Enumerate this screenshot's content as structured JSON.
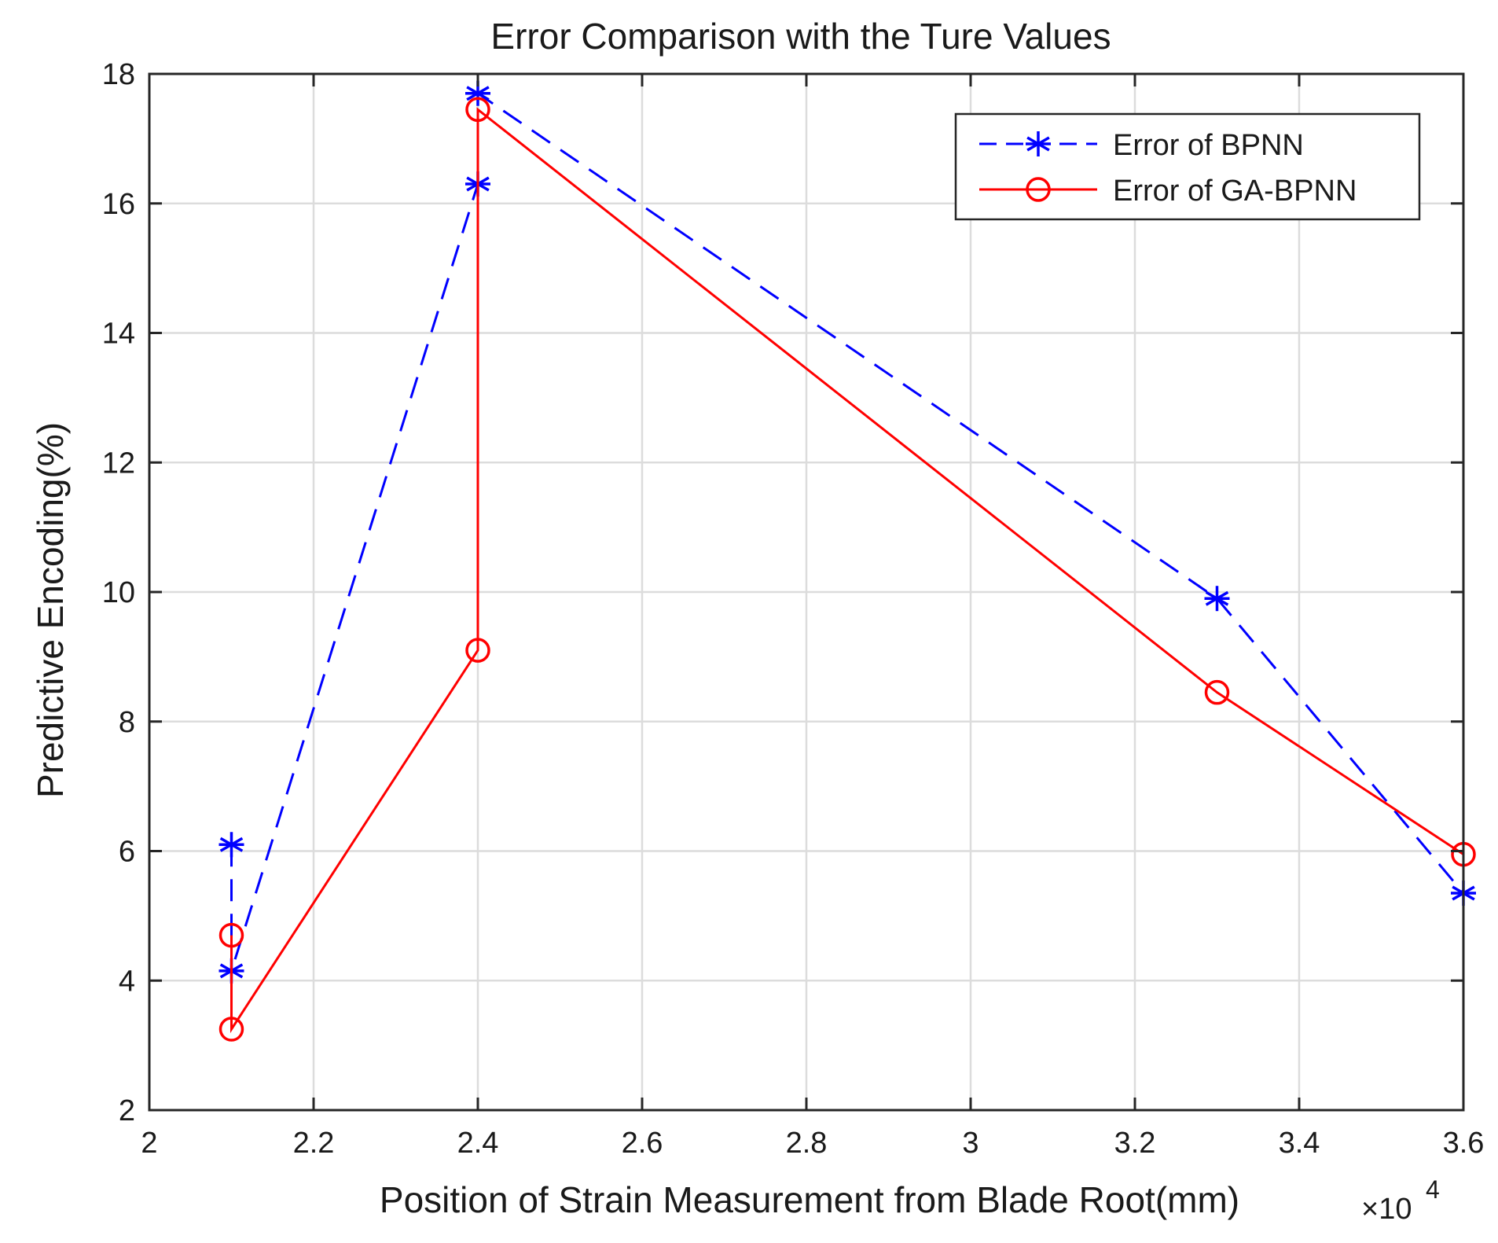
{
  "chart_data": {
    "type": "line",
    "title": "Error Comparison with the Ture Values",
    "xlabel": "Position of Strain Measurement from Blade Root(mm)",
    "ylabel": "Predictive Encoding(%)",
    "x_multiplier_label": "×10",
    "x_multiplier_exponent": "4",
    "xlim": [
      2,
      3.6
    ],
    "ylim": [
      2,
      18
    ],
    "x_ticks": [
      2,
      2.2,
      2.4,
      2.6,
      2.8,
      3,
      3.2,
      3.4,
      3.6
    ],
    "x_tick_labels": [
      "2",
      "2.2",
      "2.4",
      "2.6",
      "2.8",
      "3",
      "3.2",
      "3.4",
      "3.6"
    ],
    "y_ticks": [
      2,
      4,
      6,
      8,
      10,
      12,
      14,
      16,
      18
    ],
    "y_tick_labels": [
      "2",
      "4",
      "6",
      "8",
      "10",
      "12",
      "14",
      "16",
      "18"
    ],
    "grid": true,
    "legend_position": "top-right",
    "series": [
      {
        "name": "Error of BPNN",
        "color": "#0000ff",
        "line_style": "dashed",
        "marker": "asterisk",
        "x": [
          2.1,
          2.1,
          2.4,
          2.4,
          3.3,
          3.6
        ],
        "y": [
          6.1,
          4.15,
          16.3,
          17.7,
          9.9,
          5.35
        ]
      },
      {
        "name": "Error of GA-BPNN",
        "color": "#ff0000",
        "line_style": "solid",
        "marker": "circle",
        "x": [
          2.1,
          2.1,
          2.4,
          2.4,
          3.3,
          3.6
        ],
        "y": [
          4.7,
          3.25,
          9.1,
          17.45,
          8.45,
          5.95
        ]
      }
    ]
  }
}
